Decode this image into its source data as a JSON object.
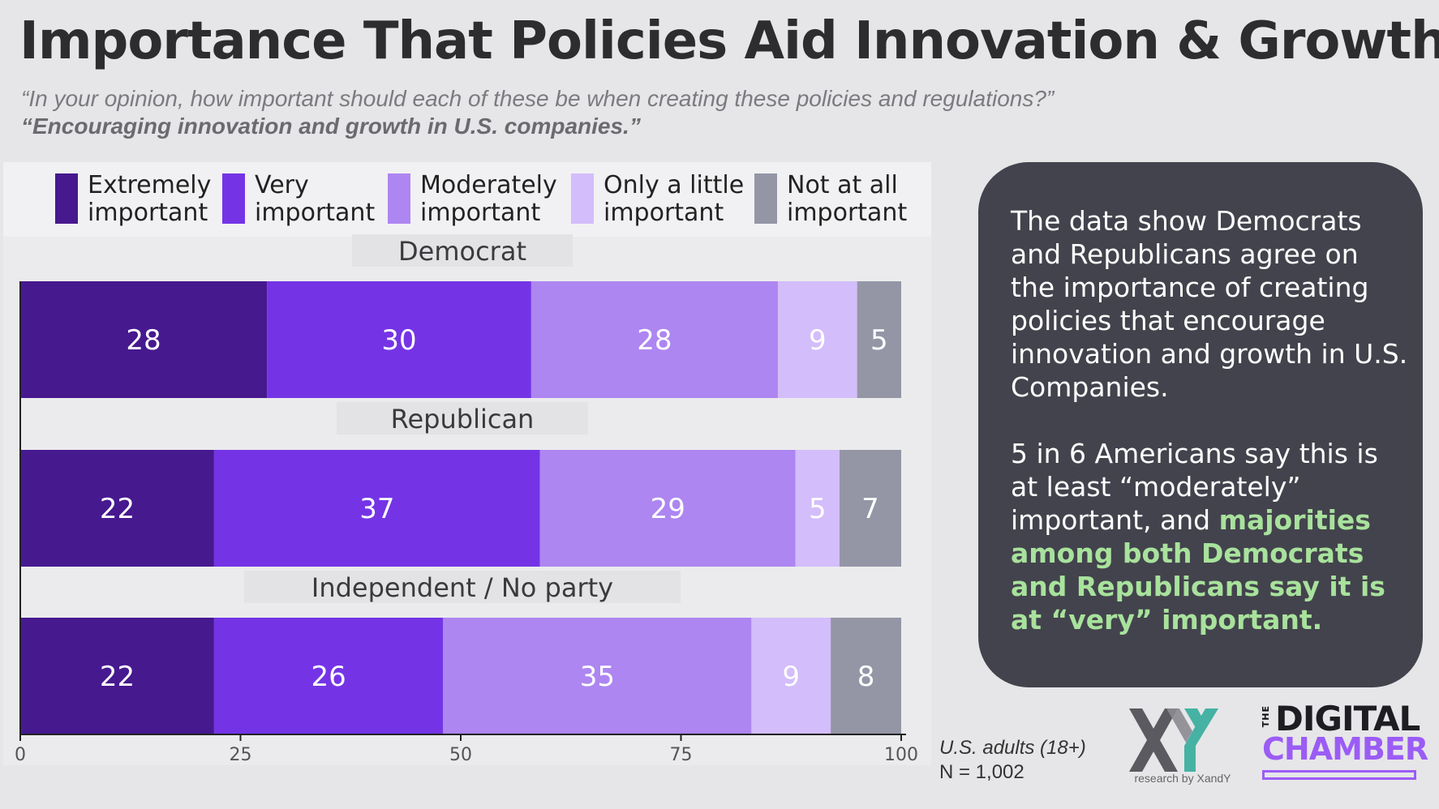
{
  "title": "Importance That Policies Aid Innovation & Growth",
  "subtitle": "“In your opinion, how important should each of these be when creating these policies and regulations?”",
  "subtitle_bold": "“Encouraging innovation and growth in U.S. companies.”",
  "legend": [
    {
      "line1": "Extremely",
      "line2": "important",
      "color": "#46198f"
    },
    {
      "line1": "Very",
      "line2": "important",
      "color": "#7434e6"
    },
    {
      "line1": "Moderately",
      "line2": "important",
      "color": "#ad86f1"
    },
    {
      "line1": "Only a little",
      "line2": "important",
      "color": "#d3bdfb"
    },
    {
      "line1": "Not at all",
      "line2": "important",
      "color": "#9496a6"
    }
  ],
  "chart_data": {
    "type": "bar",
    "orientation": "horizontal",
    "stacked": true,
    "categories": [
      "Democrat",
      "Republican",
      "Independent / No party"
    ],
    "series": [
      {
        "name": "Extremely important",
        "values": [
          28,
          22,
          22
        ]
      },
      {
        "name": "Very important",
        "values": [
          30,
          37,
          26
        ]
      },
      {
        "name": "Moderately important",
        "values": [
          28,
          29,
          35
        ]
      },
      {
        "name": "Only a little important",
        "values": [
          9,
          5,
          9
        ]
      },
      {
        "name": "Not at all important",
        "values": [
          5,
          7,
          8
        ]
      }
    ],
    "xlim": [
      0,
      100
    ],
    "xticks": [
      "0",
      "25",
      "50",
      "75",
      "100"
    ],
    "legend_position": "top"
  },
  "callout": {
    "para1": "The data show Democrats and Republicans agree on the importance of creating policies that encourage innovation and growth in U.S. Companies.",
    "para2_plain": "5 in 6 Americans say this is at least “moderately” important, and ",
    "para2_highlight": "majorities among both Democrats and Republicans say it is at “very” important."
  },
  "footnote": {
    "population": "U.S. adults (18+)",
    "n": "N = 1,002"
  },
  "logos": {
    "xy": "XY",
    "xy_tagline": "research by XandY",
    "dc_the": "THE",
    "dc_digital": "DIGITAL",
    "dc_chamber": "CHAMBER"
  }
}
